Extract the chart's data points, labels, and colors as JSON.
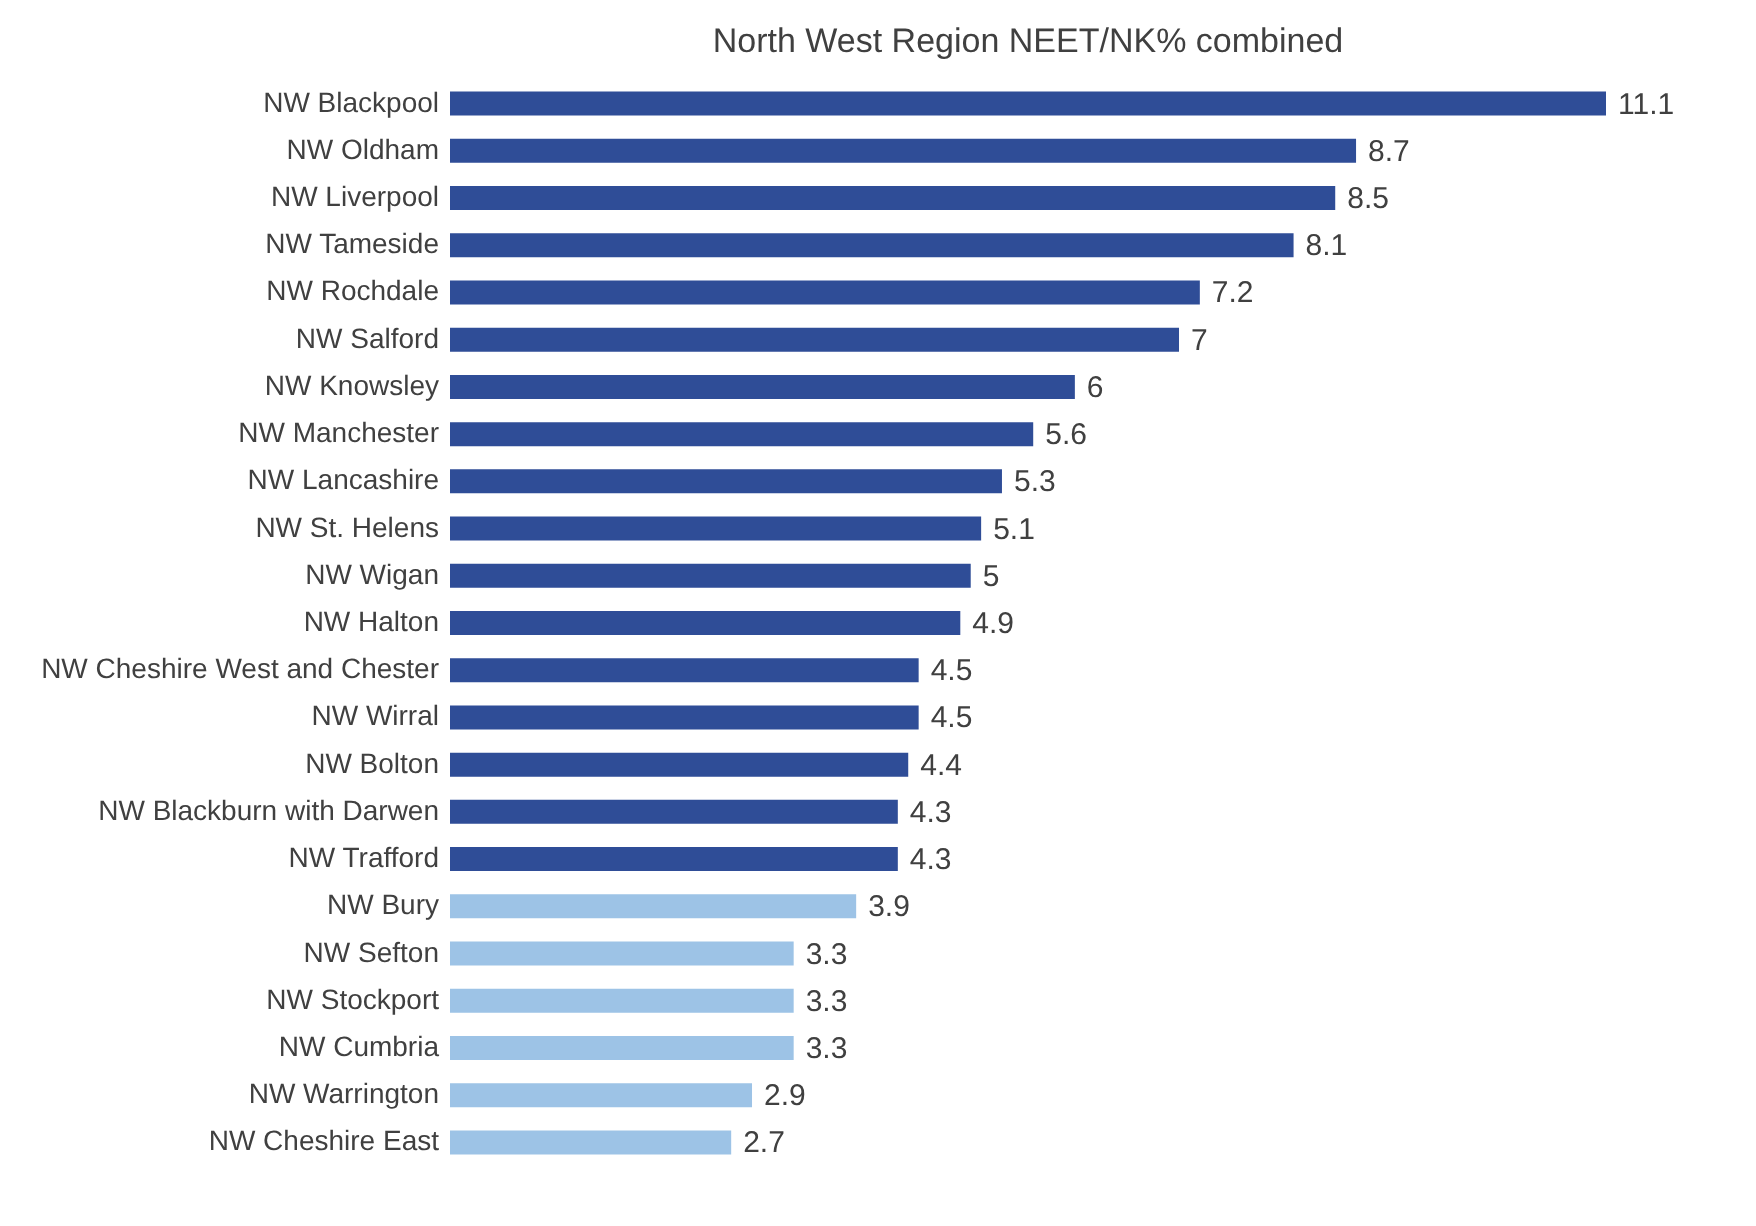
{
  "chart_data": {
    "type": "bar",
    "orientation": "horizontal",
    "title": "North West Region NEET/NK% combined",
    "categories": [
      "NW Blackpool",
      "NW Oldham",
      "NW Liverpool",
      "NW Tameside",
      "NW Rochdale",
      "NW Salford",
      "NW Knowsley",
      "NW Manchester",
      "NW Lancashire",
      "NW St. Helens",
      "NW Wigan",
      "NW Halton",
      "NW Cheshire West and Chester",
      "NW Wirral",
      "NW Bolton",
      "NW Blackburn with Darwen",
      "NW Trafford",
      "NW Bury",
      "NW Sefton",
      "NW Stockport",
      "NW Cumbria",
      "NW Warrington",
      "NW Cheshire East"
    ],
    "values": [
      11.1,
      8.7,
      8.5,
      8.1,
      7.2,
      7,
      6,
      5.6,
      5.3,
      5.1,
      5,
      4.9,
      4.5,
      4.5,
      4.4,
      4.3,
      4.3,
      3.9,
      3.3,
      3.3,
      3.3,
      2.9,
      2.7
    ],
    "colors": [
      "#2f4d97",
      "#2f4d97",
      "#2f4d97",
      "#2f4d97",
      "#2f4d97",
      "#2f4d97",
      "#2f4d97",
      "#2f4d97",
      "#2f4d97",
      "#2f4d97",
      "#2f4d97",
      "#2f4d97",
      "#2f4d97",
      "#2f4d97",
      "#2f4d97",
      "#2f4d97",
      "#2f4d97",
      "#9dc3e6",
      "#9dc3e6",
      "#9dc3e6",
      "#9dc3e6",
      "#9dc3e6",
      "#9dc3e6"
    ],
    "data_labels": true
  }
}
